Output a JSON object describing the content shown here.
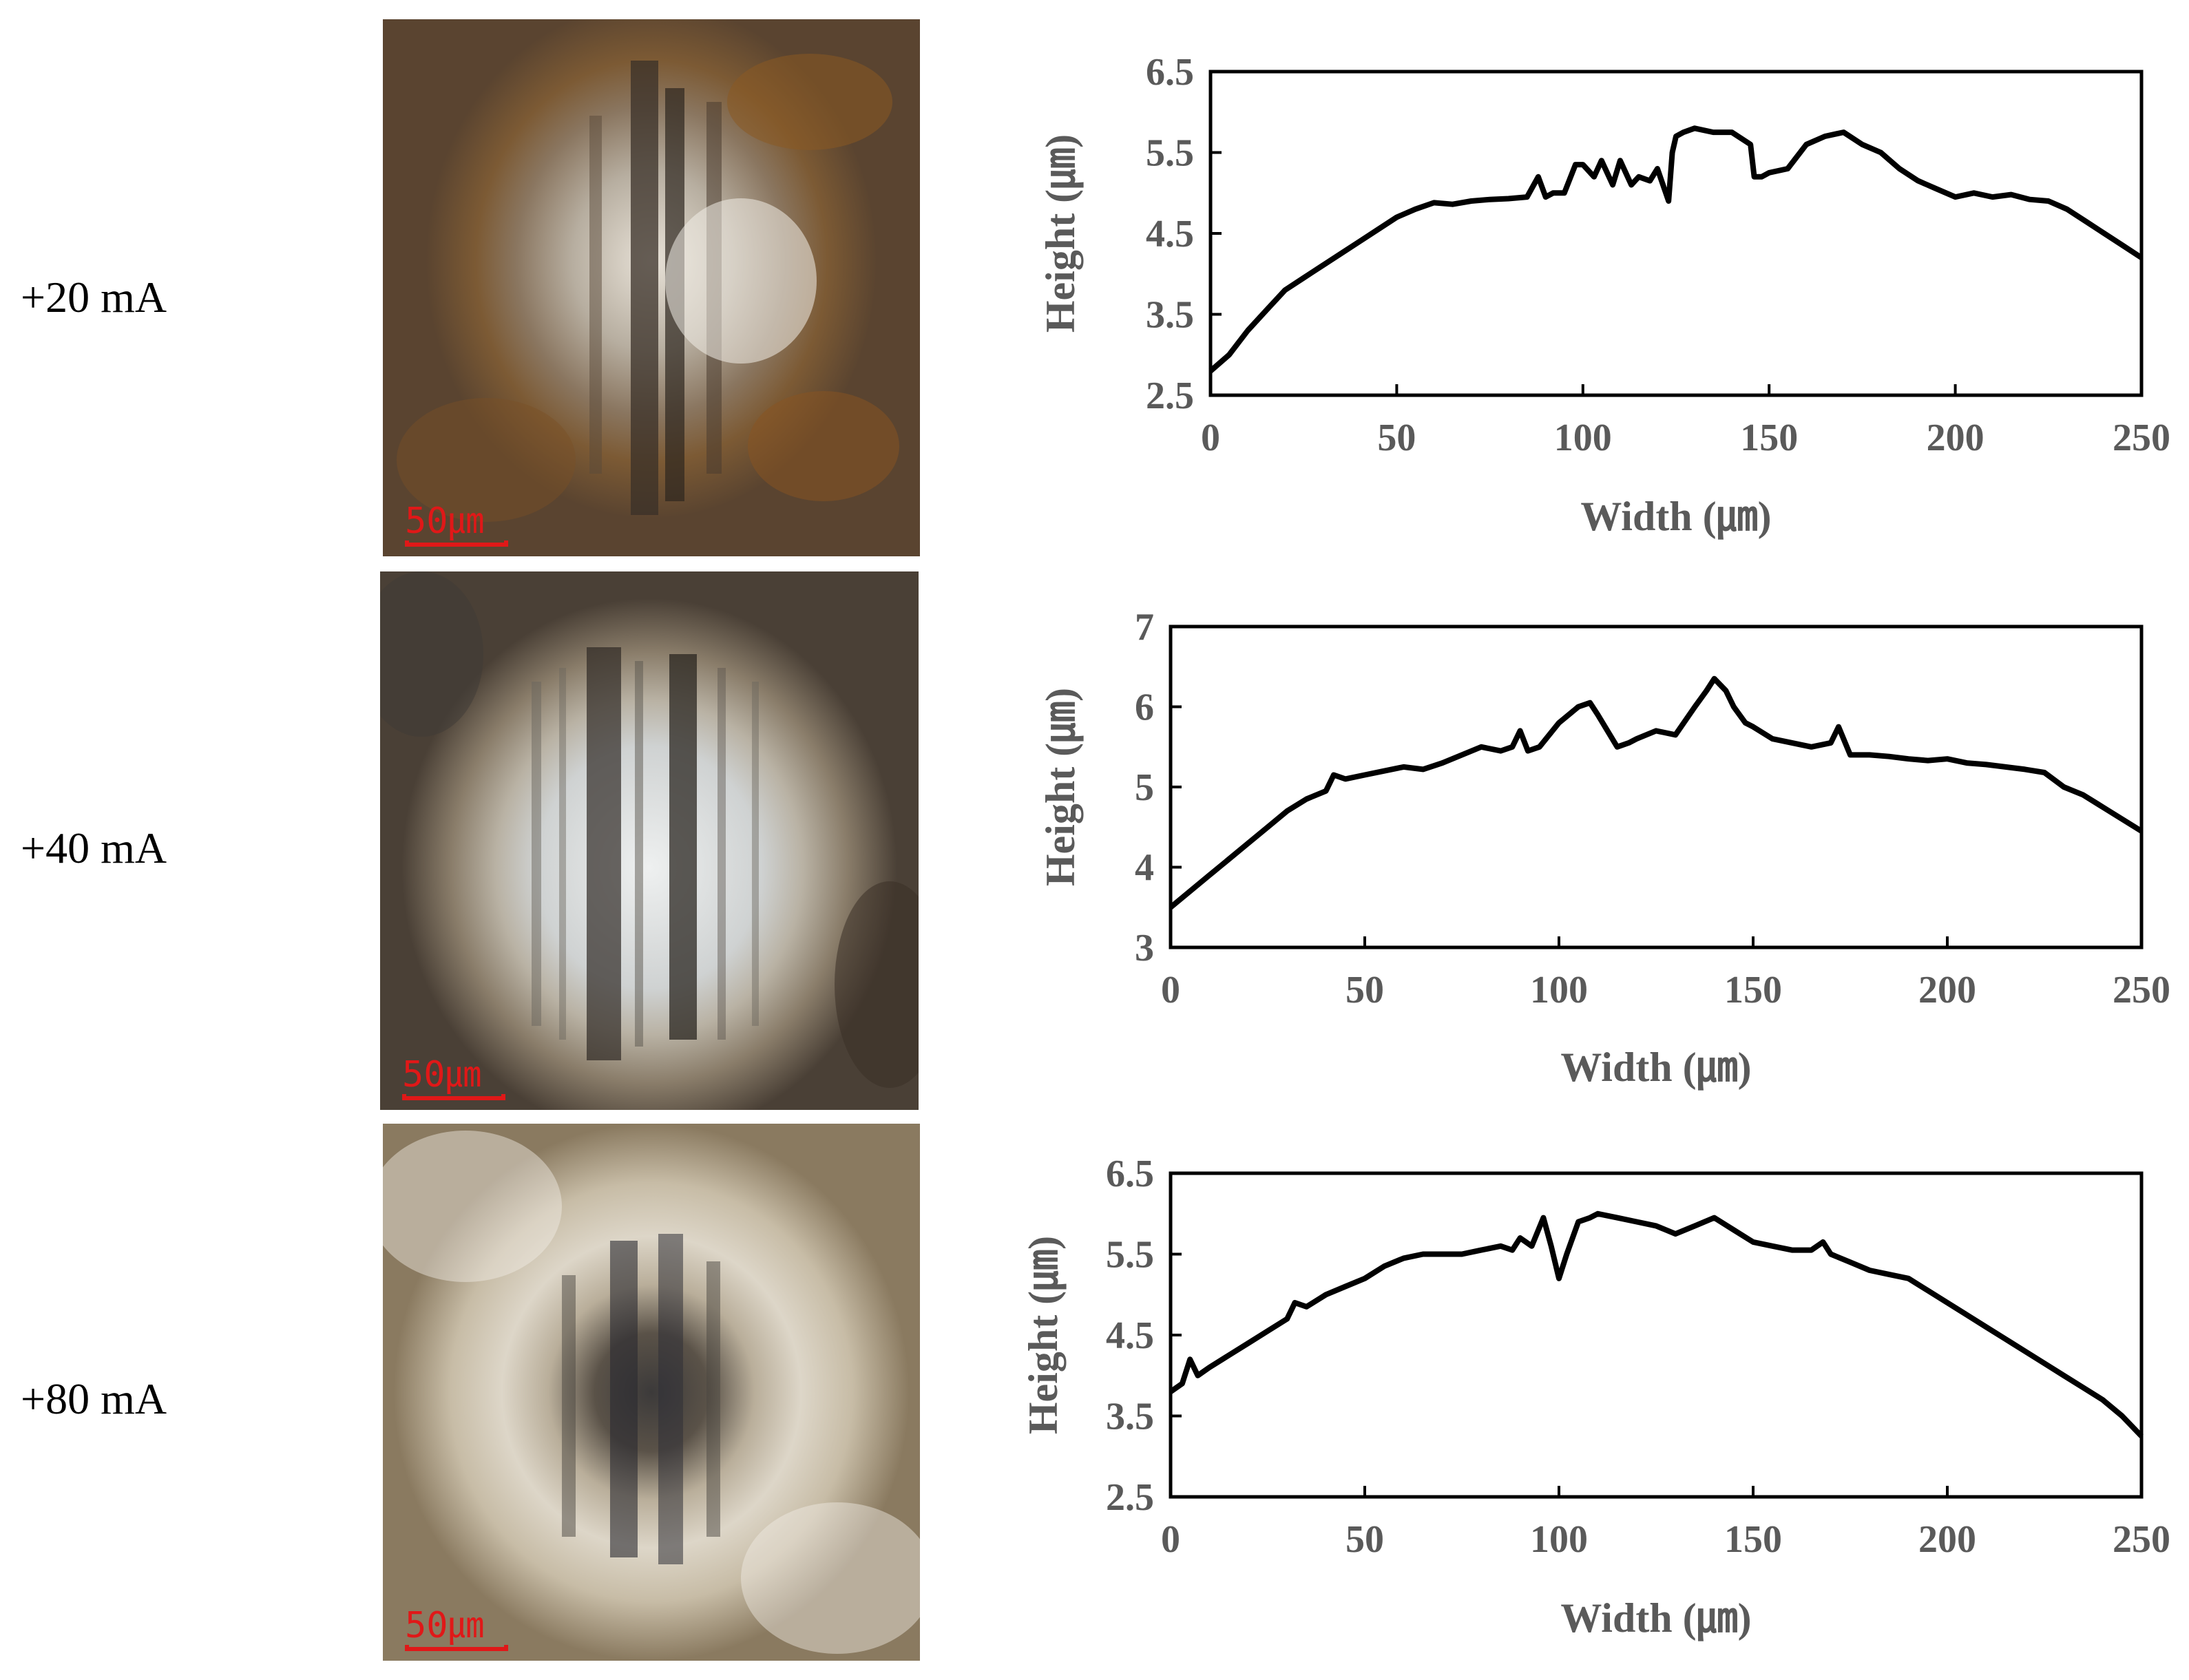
{
  "rows": [
    {
      "label": "+20 mA",
      "scale_label": "50㎛"
    },
    {
      "label": "+40 mA",
      "scale_label": "50㎛"
    },
    {
      "label": "+80 mA",
      "scale_label": "50㎛"
    }
  ],
  "colors": {
    "line": "#000000",
    "axis_text": "#5a5a5a",
    "scale_bar": "#e01818"
  },
  "chart_data": [
    {
      "type": "line",
      "title": "",
      "xlabel": "Width (㎛)",
      "ylabel": "Height (㎛)",
      "xlim": [
        0,
        250
      ],
      "ylim": [
        2.5,
        6.5
      ],
      "xticks": [
        "0",
        "50",
        "100",
        "150",
        "200",
        "250"
      ],
      "yticks": [
        "2.5",
        "3.5",
        "4.5",
        "5.5",
        "6.5"
      ],
      "x": [
        0,
        5,
        10,
        15,
        20,
        25,
        30,
        35,
        40,
        45,
        50,
        55,
        60,
        65,
        70,
        75,
        80,
        85,
        88,
        90,
        92,
        95,
        98,
        100,
        103,
        105,
        108,
        110,
        113,
        115,
        118,
        120,
        123,
        124,
        125,
        127,
        130,
        135,
        140,
        145,
        146,
        148,
        150,
        155,
        160,
        165,
        170,
        175,
        180,
        185,
        190,
        195,
        200,
        205,
        210,
        215,
        220,
        225,
        230,
        235,
        240,
        245,
        250
      ],
      "series": [
        {
          "name": "+20 mA",
          "values": [
            2.8,
            3.0,
            3.3,
            3.55,
            3.8,
            3.95,
            4.1,
            4.25,
            4.4,
            4.55,
            4.7,
            4.8,
            4.88,
            4.86,
            4.9,
            4.92,
            4.93,
            4.95,
            5.2,
            4.95,
            5.0,
            5.0,
            5.35,
            5.35,
            5.2,
            5.4,
            5.1,
            5.4,
            5.1,
            5.2,
            5.15,
            5.3,
            4.9,
            5.5,
            5.7,
            5.75,
            5.8,
            5.75,
            5.75,
            5.6,
            5.2,
            5.2,
            5.25,
            5.3,
            5.6,
            5.7,
            5.75,
            5.6,
            5.5,
            5.3,
            5.15,
            5.05,
            4.95,
            5.0,
            4.95,
            4.98,
            4.92,
            4.9,
            4.8,
            4.65,
            4.5,
            4.35,
            4.2
          ]
        }
      ]
    },
    {
      "type": "line",
      "title": "",
      "xlabel": "Width (㎛)",
      "ylabel": "Height (㎛)",
      "xlim": [
        0,
        250
      ],
      "ylim": [
        3,
        7
      ],
      "xticks": [
        "0",
        "50",
        "100",
        "150",
        "200",
        "250"
      ],
      "yticks": [
        "3",
        "4",
        "5",
        "6",
        "7"
      ],
      "x": [
        0,
        5,
        10,
        15,
        20,
        25,
        30,
        35,
        40,
        42,
        45,
        50,
        55,
        60,
        65,
        70,
        75,
        80,
        85,
        88,
        90,
        92,
        95,
        100,
        105,
        108,
        110,
        115,
        118,
        120,
        125,
        130,
        135,
        138,
        140,
        143,
        145,
        148,
        150,
        155,
        160,
        165,
        170,
        172,
        175,
        180,
        185,
        190,
        195,
        200,
        205,
        210,
        215,
        220,
        225,
        230,
        235,
        240,
        245,
        250
      ],
      "series": [
        {
          "name": "+40 mA",
          "values": [
            3.5,
            3.7,
            3.9,
            4.1,
            4.3,
            4.5,
            4.7,
            4.85,
            4.95,
            5.15,
            5.1,
            5.15,
            5.2,
            5.25,
            5.22,
            5.3,
            5.4,
            5.5,
            5.45,
            5.5,
            5.7,
            5.45,
            5.5,
            5.8,
            6.0,
            6.05,
            5.9,
            5.5,
            5.55,
            5.6,
            5.7,
            5.65,
            6.0,
            6.2,
            6.35,
            6.2,
            6.0,
            5.8,
            5.75,
            5.6,
            5.55,
            5.5,
            5.55,
            5.75,
            5.4,
            5.4,
            5.38,
            5.35,
            5.33,
            5.35,
            5.3,
            5.28,
            5.25,
            5.22,
            5.18,
            5.0,
            4.9,
            4.75,
            4.6,
            4.45
          ]
        }
      ]
    },
    {
      "type": "line",
      "title": "",
      "xlabel": "Width (㎛)",
      "ylabel": "Height (㎛)",
      "xlim": [
        0,
        250
      ],
      "ylim": [
        2.5,
        6.5
      ],
      "xticks": [
        "0",
        "50",
        "100",
        "150",
        "200",
        "250"
      ],
      "yticks": [
        "2.5",
        "3.5",
        "4.5",
        "5.5",
        "6.5"
      ],
      "x": [
        0,
        3,
        5,
        7,
        10,
        15,
        20,
        25,
        30,
        32,
        35,
        40,
        45,
        50,
        55,
        60,
        65,
        70,
        75,
        80,
        85,
        88,
        90,
        93,
        96,
        98,
        100,
        102,
        105,
        108,
        110,
        115,
        120,
        125,
        130,
        135,
        140,
        145,
        150,
        155,
        160,
        165,
        168,
        170,
        175,
        180,
        185,
        190,
        195,
        200,
        205,
        210,
        215,
        220,
        225,
        230,
        235,
        240,
        245,
        250
      ],
      "series": [
        {
          "name": "+80 mA",
          "values": [
            3.8,
            3.9,
            4.2,
            4.0,
            4.1,
            4.25,
            4.4,
            4.55,
            4.7,
            4.9,
            4.85,
            5.0,
            5.1,
            5.2,
            5.35,
            5.45,
            5.5,
            5.5,
            5.5,
            5.55,
            5.6,
            5.55,
            5.7,
            5.6,
            5.95,
            5.6,
            5.2,
            5.5,
            5.9,
            5.95,
            6.0,
            5.95,
            5.9,
            5.85,
            5.75,
            5.85,
            5.95,
            5.8,
            5.65,
            5.6,
            5.55,
            5.55,
            5.65,
            5.5,
            5.4,
            5.3,
            5.25,
            5.2,
            5.05,
            4.9,
            4.75,
            4.6,
            4.45,
            4.3,
            4.15,
            4.0,
            3.85,
            3.7,
            3.5,
            3.25
          ]
        }
      ]
    }
  ]
}
